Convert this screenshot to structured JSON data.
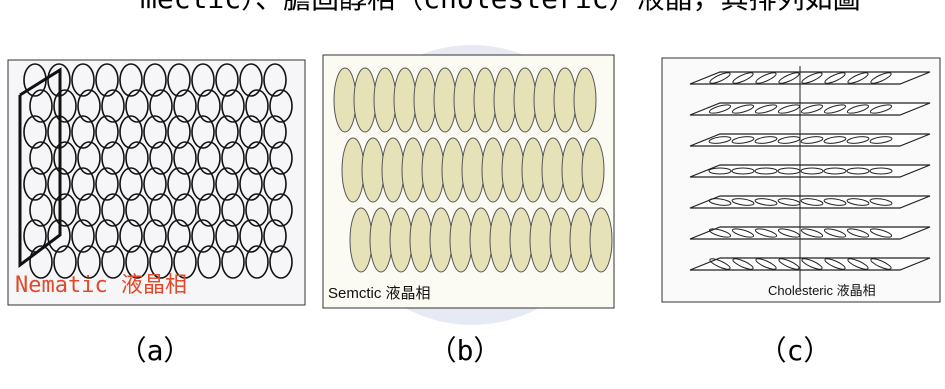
{
  "header": {
    "text": "mectic）、膽固醇相（cholesteric）液晶，其排列如圖"
  },
  "panels": [
    {
      "label": "Nematic 液晶相",
      "caption": "（a）"
    },
    {
      "label": "Semctic 液晶相",
      "caption": "（b）"
    },
    {
      "label": "Cholesteric 液晶相",
      "caption": "（c）"
    }
  ]
}
